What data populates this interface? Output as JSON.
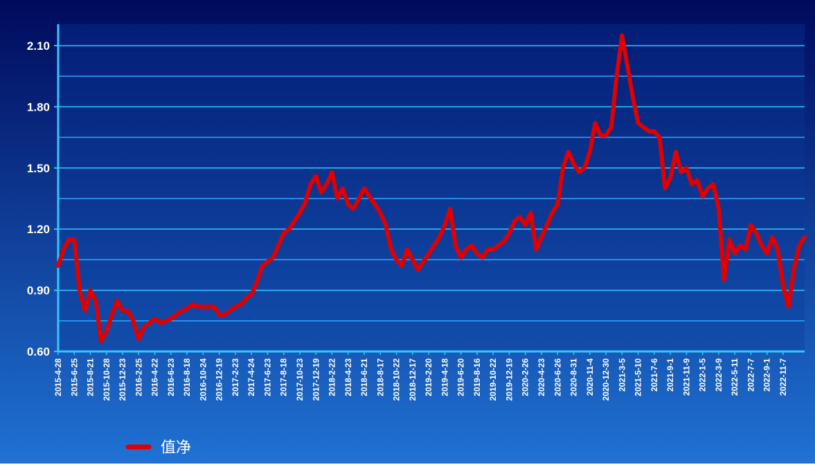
{
  "chart_data": {
    "type": "line",
    "categories": [
      "2015-4-28",
      null,
      null,
      "2015-6-25",
      null,
      null,
      "2015-8-21",
      null,
      null,
      "2015-10-28",
      null,
      null,
      "2015-12-23",
      null,
      null,
      "2016-2-25",
      null,
      null,
      "2016-4-22",
      null,
      null,
      "2016-6-23",
      null,
      null,
      "2016-8-18",
      null,
      null,
      "2016-10-24",
      null,
      null,
      "2016-12-19",
      null,
      null,
      "2017-2-23",
      null,
      null,
      "2017-4-24",
      null,
      null,
      "2017-6-23",
      null,
      null,
      "2017-8-18",
      null,
      null,
      "2017-10-23",
      null,
      null,
      "2017-12-19",
      null,
      null,
      "2018-2-22",
      null,
      null,
      "2018-4-23",
      null,
      null,
      "2018-6-21",
      null,
      null,
      "2018-8-17",
      null,
      null,
      "2018-10-22",
      null,
      null,
      "2018-12-17",
      null,
      null,
      "2019-2-20",
      null,
      null,
      "2019-4-18",
      null,
      null,
      "2019-6-20",
      null,
      null,
      "2019-8-16",
      null,
      null,
      "2019-10-22",
      null,
      null,
      "2019-12-19",
      null,
      null,
      "2020-2-26",
      null,
      null,
      "2020-4-23",
      null,
      null,
      "2020-6-26",
      null,
      null,
      "2020-8-31",
      null,
      null,
      "2020-11-4",
      null,
      null,
      "2020-12-30",
      null,
      null,
      "2021-3-5",
      null,
      null,
      "2021-5-10",
      null,
      null,
      "2021-7-6",
      null,
      null,
      "2021-9-1",
      null,
      null,
      "2021-11-9",
      null,
      null,
      "2022-1-5",
      null,
      null,
      "2022-3-9",
      null,
      null,
      "2022-5-11",
      null,
      null,
      "2022-7-7",
      null,
      null,
      "2022-9-1",
      null,
      null,
      "2022-11-7",
      null,
      null,
      null,
      null
    ],
    "series": [
      {
        "name": "值净",
        "color": "#e00000",
        "values": [
          1.02,
          1.1,
          1.15,
          1.15,
          0.9,
          0.8,
          0.9,
          0.85,
          0.65,
          0.7,
          0.78,
          0.85,
          0.8,
          0.8,
          0.75,
          0.66,
          0.72,
          0.74,
          0.76,
          0.74,
          0.75,
          0.76,
          0.78,
          0.8,
          0.81,
          0.83,
          0.82,
          0.82,
          0.82,
          0.82,
          0.78,
          0.78,
          0.8,
          0.82,
          0.83,
          0.86,
          0.88,
          0.94,
          1.02,
          1.04,
          1.06,
          1.12,
          1.18,
          1.2,
          1.24,
          1.28,
          1.33,
          1.42,
          1.46,
          1.38,
          1.42,
          1.48,
          1.35,
          1.4,
          1.32,
          1.3,
          1.35,
          1.4,
          1.36,
          1.32,
          1.28,
          1.22,
          1.1,
          1.05,
          1.02,
          1.1,
          1.05,
          1.0,
          1.04,
          1.08,
          1.12,
          1.16,
          1.22,
          1.3,
          1.12,
          1.06,
          1.1,
          1.12,
          1.08,
          1.06,
          1.1,
          1.1,
          1.12,
          1.14,
          1.18,
          1.24,
          1.26,
          1.22,
          1.28,
          1.1,
          1.16,
          1.22,
          1.28,
          1.32,
          1.5,
          1.58,
          1.52,
          1.48,
          1.5,
          1.58,
          1.72,
          1.66,
          1.66,
          1.7,
          1.95,
          2.15,
          2.0,
          1.85,
          1.72,
          1.7,
          1.68,
          1.68,
          1.65,
          1.4,
          1.45,
          1.58,
          1.48,
          1.5,
          1.42,
          1.44,
          1.36,
          1.4,
          1.42,
          1.3,
          0.95,
          1.15,
          1.08,
          1.12,
          1.1,
          1.22,
          1.18,
          1.12,
          1.08,
          1.16,
          1.1,
          0.92,
          0.82,
          1.0,
          1.12,
          1.16
        ]
      }
    ],
    "ylim": [
      0.6,
      2.205
    ],
    "yticks": [
      {
        "value": 0.6,
        "label": "0.60"
      },
      {
        "value": 0.9,
        "label": "0.90"
      },
      {
        "value": 1.2,
        "label": "1.20"
      },
      {
        "value": 1.5,
        "label": "1.50"
      },
      {
        "value": 1.8,
        "label": "1.80"
      },
      {
        "value": 2.1,
        "label": "2.10"
      }
    ],
    "minor_yticks": [
      0.75,
      1.05,
      1.35,
      1.65,
      1.95
    ],
    "grid": true,
    "legend": "bottom-left"
  }
}
